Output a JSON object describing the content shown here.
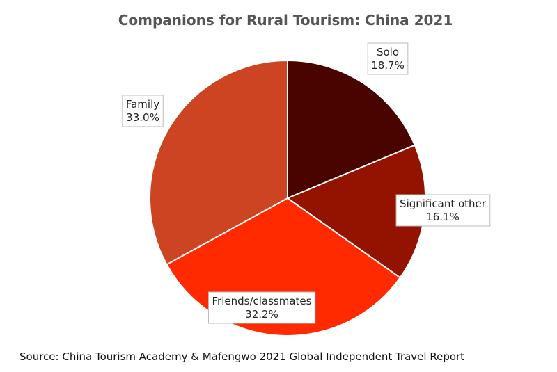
{
  "chart_data": {
    "type": "pie",
    "title": "Companions for Rural Tourism: China 2021",
    "categories": [
      "Solo",
      "Significant other",
      "Friends/classmates",
      "Family"
    ],
    "values": [
      18.7,
      16.1,
      32.2,
      33.0
    ],
    "value_labels": [
      "18.7%",
      "16.1%",
      "32.2%",
      "33.0%"
    ],
    "colors": [
      "#4a0400",
      "#931200",
      "#ff2a00",
      "#cc4422"
    ],
    "source": "Source: China Tourism Academy & Mafengwo 2021 Global Independent Travel Report"
  }
}
